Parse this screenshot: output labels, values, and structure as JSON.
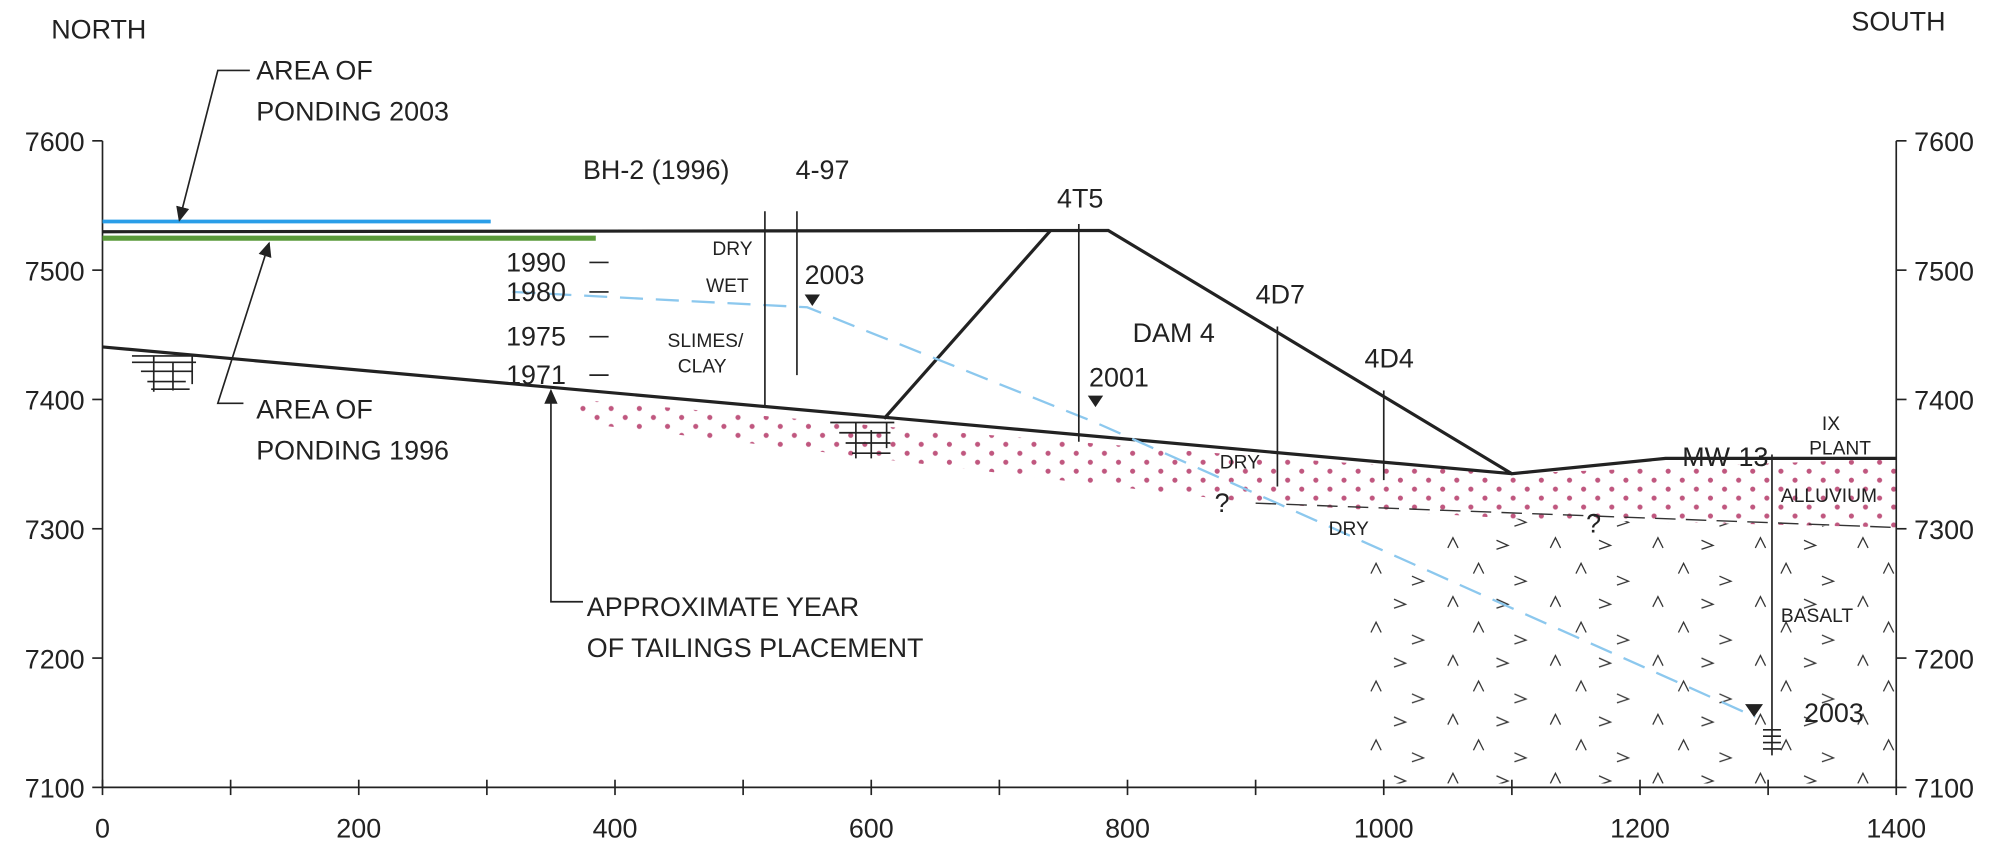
{
  "header": {
    "north": "NORTH",
    "south": "SOUTH"
  },
  "axes": {
    "left_ticks": [
      7100,
      7200,
      7300,
      7400,
      7500,
      7600
    ],
    "right_ticks": [
      7100,
      7200,
      7300,
      7400,
      7500,
      7600
    ],
    "x_ticks": [
      0,
      200,
      400,
      600,
      800,
      1000,
      1200,
      1400
    ]
  },
  "labels": {
    "ponding_2003": [
      "AREA OF",
      "PONDING 2003"
    ],
    "ponding_1996": [
      "AREA OF",
      "PONDING 1996"
    ],
    "tailings": [
      "APPROXIMATE YEAR",
      "OF TAILINGS PLACEMENT"
    ],
    "years": [
      "1990",
      "1980",
      "1975",
      "1971"
    ],
    "bh2": "BH-2 (1996)",
    "b497": "4-97",
    "dry_1": "DRY",
    "wet": "WET",
    "slimes": [
      "SLIMES/",
      "CLAY"
    ],
    "w2003_a": "2003",
    "t45": "4T5",
    "w2001": "2001",
    "dam4": "DAM 4",
    "d47": "4D7",
    "d44": "4D4",
    "dry_2": "DRY",
    "dry_3": "DRY",
    "q1": "?",
    "q2": "?",
    "mw13": "MW-13",
    "ix_plant": [
      "IX",
      "PLANT"
    ],
    "alluvium": "ALLUVIUM",
    "basalt": "BASALT",
    "w2003_b": "2003"
  }
}
